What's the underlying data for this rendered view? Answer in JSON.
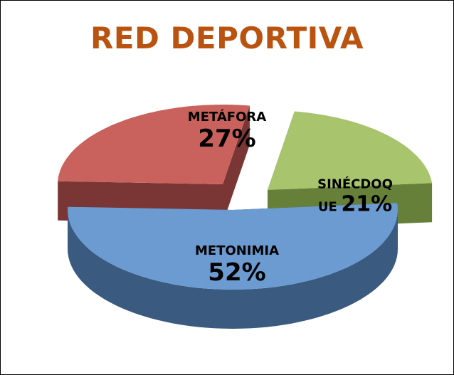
{
  "chart_data": {
    "type": "pie3d",
    "title": "RED DEPORTIVA",
    "categories": [
      "METONIMIA",
      "METÁFORA",
      "SINÉCDOQUE"
    ],
    "values": [
      52,
      27,
      21
    ],
    "value_labels": [
      "52%",
      "27%",
      "21%"
    ],
    "colors": [
      "#6b9bd1",
      "#c9625c",
      "#a8c46d"
    ],
    "side_colors": [
      "#3b5a7f",
      "#7a3634",
      "#66803a"
    ]
  }
}
